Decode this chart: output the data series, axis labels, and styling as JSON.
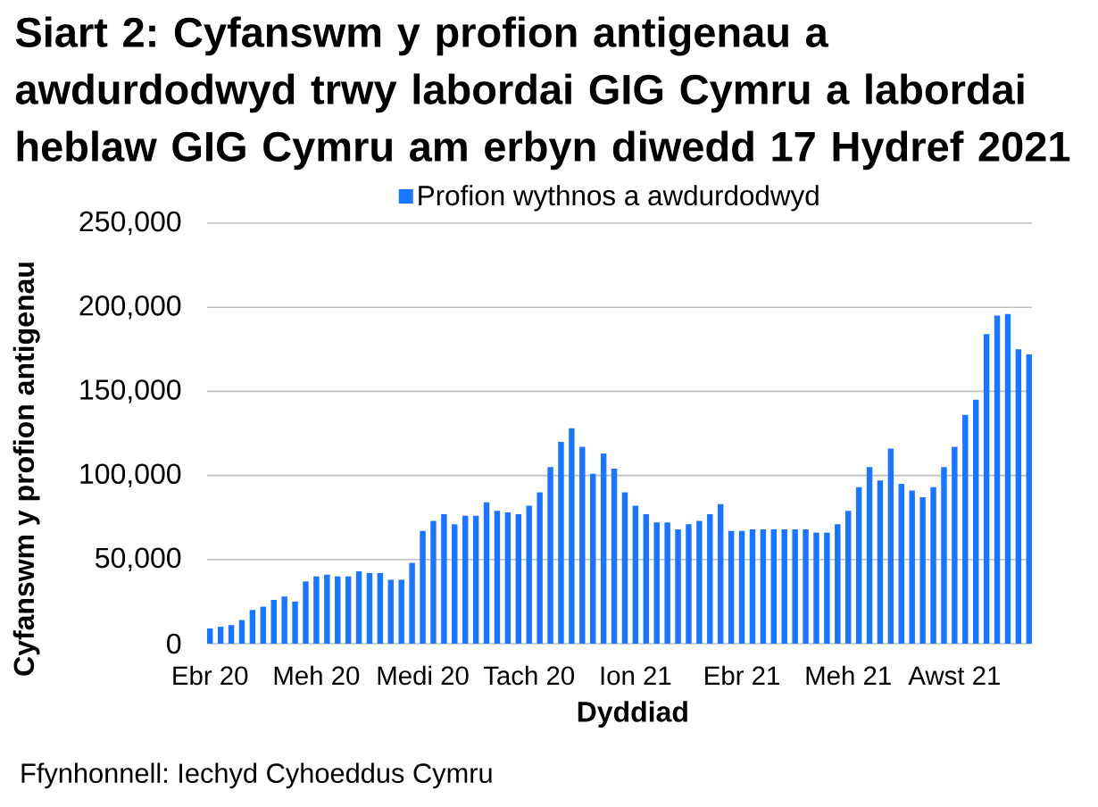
{
  "chart_data": {
    "type": "bar",
    "title": "Siart 2: Cyfanswm y profion antigenau a awdurdodwyd trwy labordai GIG Cymru a labordai heblaw GIG Cymru am erbyn diwedd 17 Hydref 2021",
    "xlabel": "Dyddiad",
    "ylabel": "Cyfanswm y profion antigenau",
    "categories": [
      "Ebr 20",
      null,
      null,
      null,
      null,
      null,
      null,
      null,
      null,
      null,
      "Meh 20",
      null,
      null,
      null,
      null,
      null,
      null,
      null,
      null,
      null,
      "Medi 20",
      null,
      null,
      null,
      null,
      null,
      null,
      null,
      null,
      null,
      "Tach 20",
      null,
      null,
      null,
      null,
      null,
      null,
      null,
      null,
      null,
      "Ion 21",
      null,
      null,
      null,
      null,
      null,
      null,
      null,
      null,
      null,
      "Ebr 21",
      null,
      null,
      null,
      null,
      null,
      null,
      null,
      null,
      null,
      "Meh 21",
      null,
      null,
      null,
      null,
      null,
      null,
      null,
      null,
      null,
      "Awst 21",
      null,
      null,
      null,
      null,
      null,
      null,
      null
    ],
    "series": [
      {
        "name": "Profion wythnos a awdurdodwyd",
        "color": "#1a75ff",
        "values": [
          9000,
          10000,
          11000,
          14000,
          20000,
          22000,
          26000,
          28000,
          25000,
          37000,
          40000,
          41000,
          40000,
          40000,
          43000,
          42000,
          42000,
          38000,
          38000,
          48000,
          67000,
          73000,
          77000,
          71000,
          76000,
          76000,
          84000,
          79000,
          78000,
          77000,
          82000,
          90000,
          105000,
          120000,
          128000,
          117000,
          101000,
          113000,
          104000,
          90000,
          82000,
          77000,
          72000,
          72000,
          68000,
          71000,
          73000,
          77000,
          83000,
          67000,
          67000,
          68000,
          68000,
          68000,
          68000,
          68000,
          68000,
          66000,
          66000,
          71000,
          79000,
          93000,
          105000,
          97000,
          116000,
          95000,
          91000,
          87000,
          93000,
          105000,
          117000,
          136000,
          145000,
          184000,
          195000,
          196000,
          175000,
          172000
        ]
      }
    ],
    "ylim": [
      0,
      250000
    ],
    "yticks": [
      0,
      {
        "value": 50000,
        "label": "50,000"
      },
      {
        "value": 100000,
        "label": "100,000"
      },
      {
        "value": 150000,
        "label": "150,000"
      },
      {
        "value": 200000,
        "label": "200,000"
      },
      {
        "value": 250000,
        "label": "250,000"
      }
    ],
    "grid": "y",
    "legend": "top",
    "annotations": [
      "Ffynhonnell: Iechyd Cyhoeddus Cymru"
    ]
  }
}
